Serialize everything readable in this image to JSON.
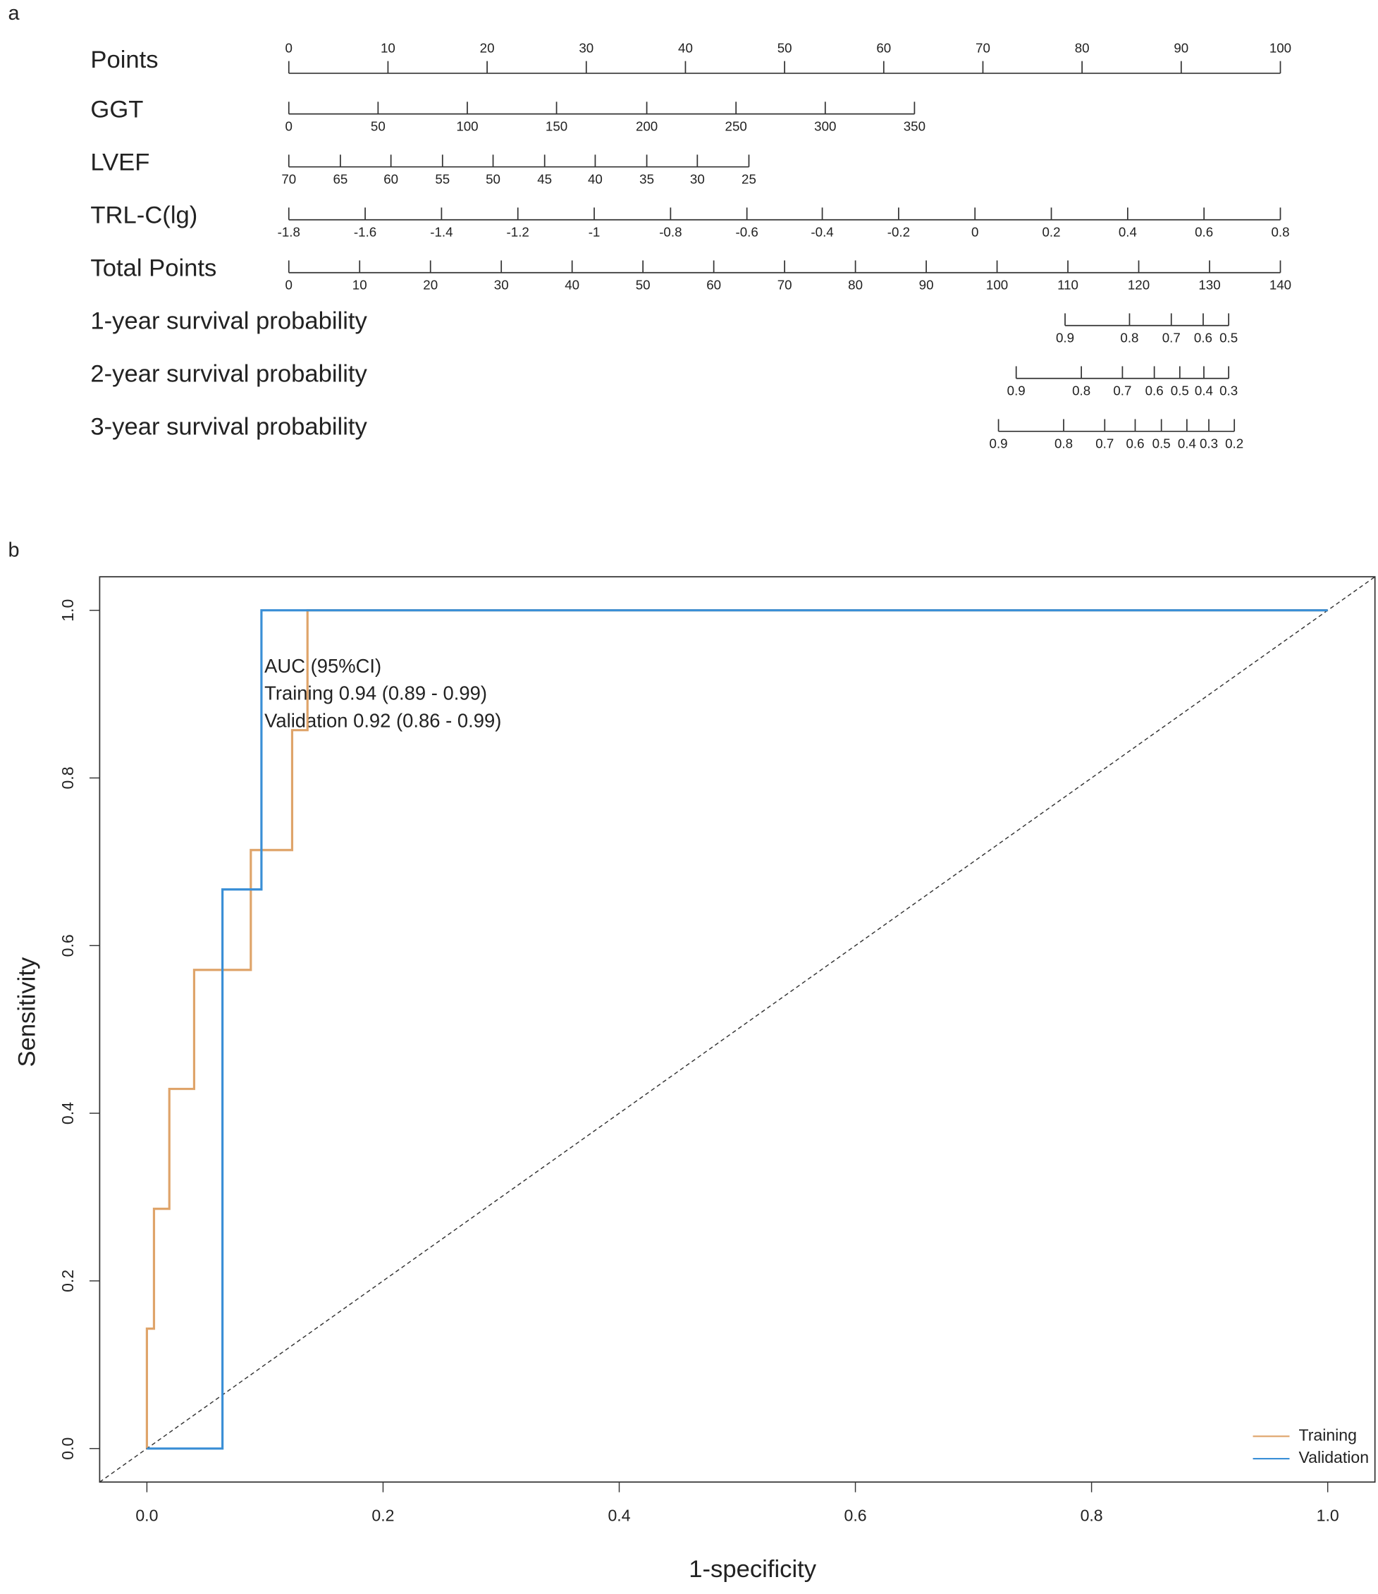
{
  "chart_data": [
    {
      "type": "nomogram",
      "label": "a",
      "points_lim": [
        0,
        100
      ],
      "total_lim": [
        0,
        140
      ],
      "rows": [
        {
          "name": "Points",
          "scale": "points",
          "ticks": [
            0,
            10,
            20,
            30,
            40,
            50,
            60,
            70,
            80,
            90,
            100
          ]
        },
        {
          "name": "GGT",
          "scale": "points",
          "ticks": [
            0,
            50,
            100,
            150,
            200,
            250,
            300,
            350
          ],
          "positions": [
            0,
            9.0,
            18.0,
            27.0,
            36.1,
            45.1,
            54.1,
            63.1
          ]
        },
        {
          "name": "LVEF",
          "scale": "points",
          "ticks": [
            70,
            65,
            60,
            55,
            50,
            45,
            40,
            35,
            30,
            25
          ],
          "positions": [
            0,
            5.2,
            10.3,
            15.5,
            20.6,
            25.8,
            30.9,
            36.1,
            41.2,
            46.4
          ]
        },
        {
          "name": "TRL-C(lg)",
          "scale": "points",
          "ticks": [
            -1.8,
            -1.6,
            -1.4,
            -1.2,
            -1,
            -0.8,
            -0.6,
            -0.4,
            -0.2,
            0,
            0.2,
            0.4,
            0.6,
            0.8
          ],
          "positions": [
            0,
            7.7,
            15.4,
            23.1,
            30.8,
            38.5,
            46.2,
            53.8,
            61.5,
            69.2,
            76.9,
            84.6,
            92.3,
            100
          ]
        },
        {
          "name": "Total Points",
          "scale": "total",
          "ticks": [
            0,
            10,
            20,
            30,
            40,
            50,
            60,
            70,
            80,
            90,
            100,
            110,
            120,
            130,
            140
          ]
        },
        {
          "name": "1-year survival probability",
          "scale": "total",
          "ticks": [
            0.9,
            0.8,
            0.7,
            0.6,
            0.5
          ],
          "positions": [
            109.6,
            118.7,
            124.6,
            129.1,
            132.7
          ]
        },
        {
          "name": "2-year survival probability",
          "scale": "total",
          "ticks": [
            0.9,
            0.8,
            0.7,
            0.6,
            0.5,
            0.4,
            0.3
          ],
          "positions": [
            102.7,
            111.9,
            117.7,
            122.2,
            125.8,
            129.2,
            132.7
          ]
        },
        {
          "name": "3-year survival probability",
          "scale": "total",
          "ticks": [
            0.9,
            0.8,
            0.7,
            0.6,
            0.5,
            0.4,
            0.3,
            0.2
          ],
          "positions": [
            100.2,
            109.4,
            115.2,
            119.5,
            123.2,
            126.8,
            129.9,
            133.5
          ]
        }
      ]
    },
    {
      "type": "line",
      "label": "b",
      "x_label": "1-specificity",
      "y_label": "Sensitivity",
      "xlim": [
        -0.04,
        1.04
      ],
      "ylim": [
        -0.04,
        1.04
      ],
      "xticks": [
        {
          "value": 0,
          "label": "0.0"
        },
        0.2,
        0.4,
        0.6,
        0.8,
        {
          "value": 1,
          "label": "1.0"
        }
      ],
      "yticks": [
        {
          "value": 0,
          "label": "0.0"
        },
        0.2,
        0.4,
        0.6,
        0.8,
        {
          "value": 1,
          "label": "1.0"
        }
      ],
      "diagonal": true,
      "legend": "bottom-right",
      "annotations": [
        "AUC (95%CI)",
        "Training 0.94 (0.89 - 0.99)",
        "Validation 0.92 (0.86 - 0.99)"
      ],
      "series": [
        {
          "name": "Training",
          "color": "#dfa46a",
          "x": [
            0,
            0,
            0.006,
            0.006,
            0.019,
            0.019,
            0.04,
            0.04,
            0.088,
            0.088,
            0.123,
            0.123,
            0.136,
            0.136,
            1
          ],
          "values": [
            0,
            0.143,
            0.143,
            0.286,
            0.286,
            0.429,
            0.429,
            0.571,
            0.571,
            0.714,
            0.714,
            0.857,
            0.857,
            1,
            1
          ]
        },
        {
          "name": "Validation",
          "color": "#3a8fd6",
          "x": [
            0,
            0.064,
            0.064,
            0.097,
            0.097,
            1
          ],
          "values": [
            0,
            0,
            0.667,
            0.667,
            1,
            1
          ]
        }
      ]
    }
  ]
}
